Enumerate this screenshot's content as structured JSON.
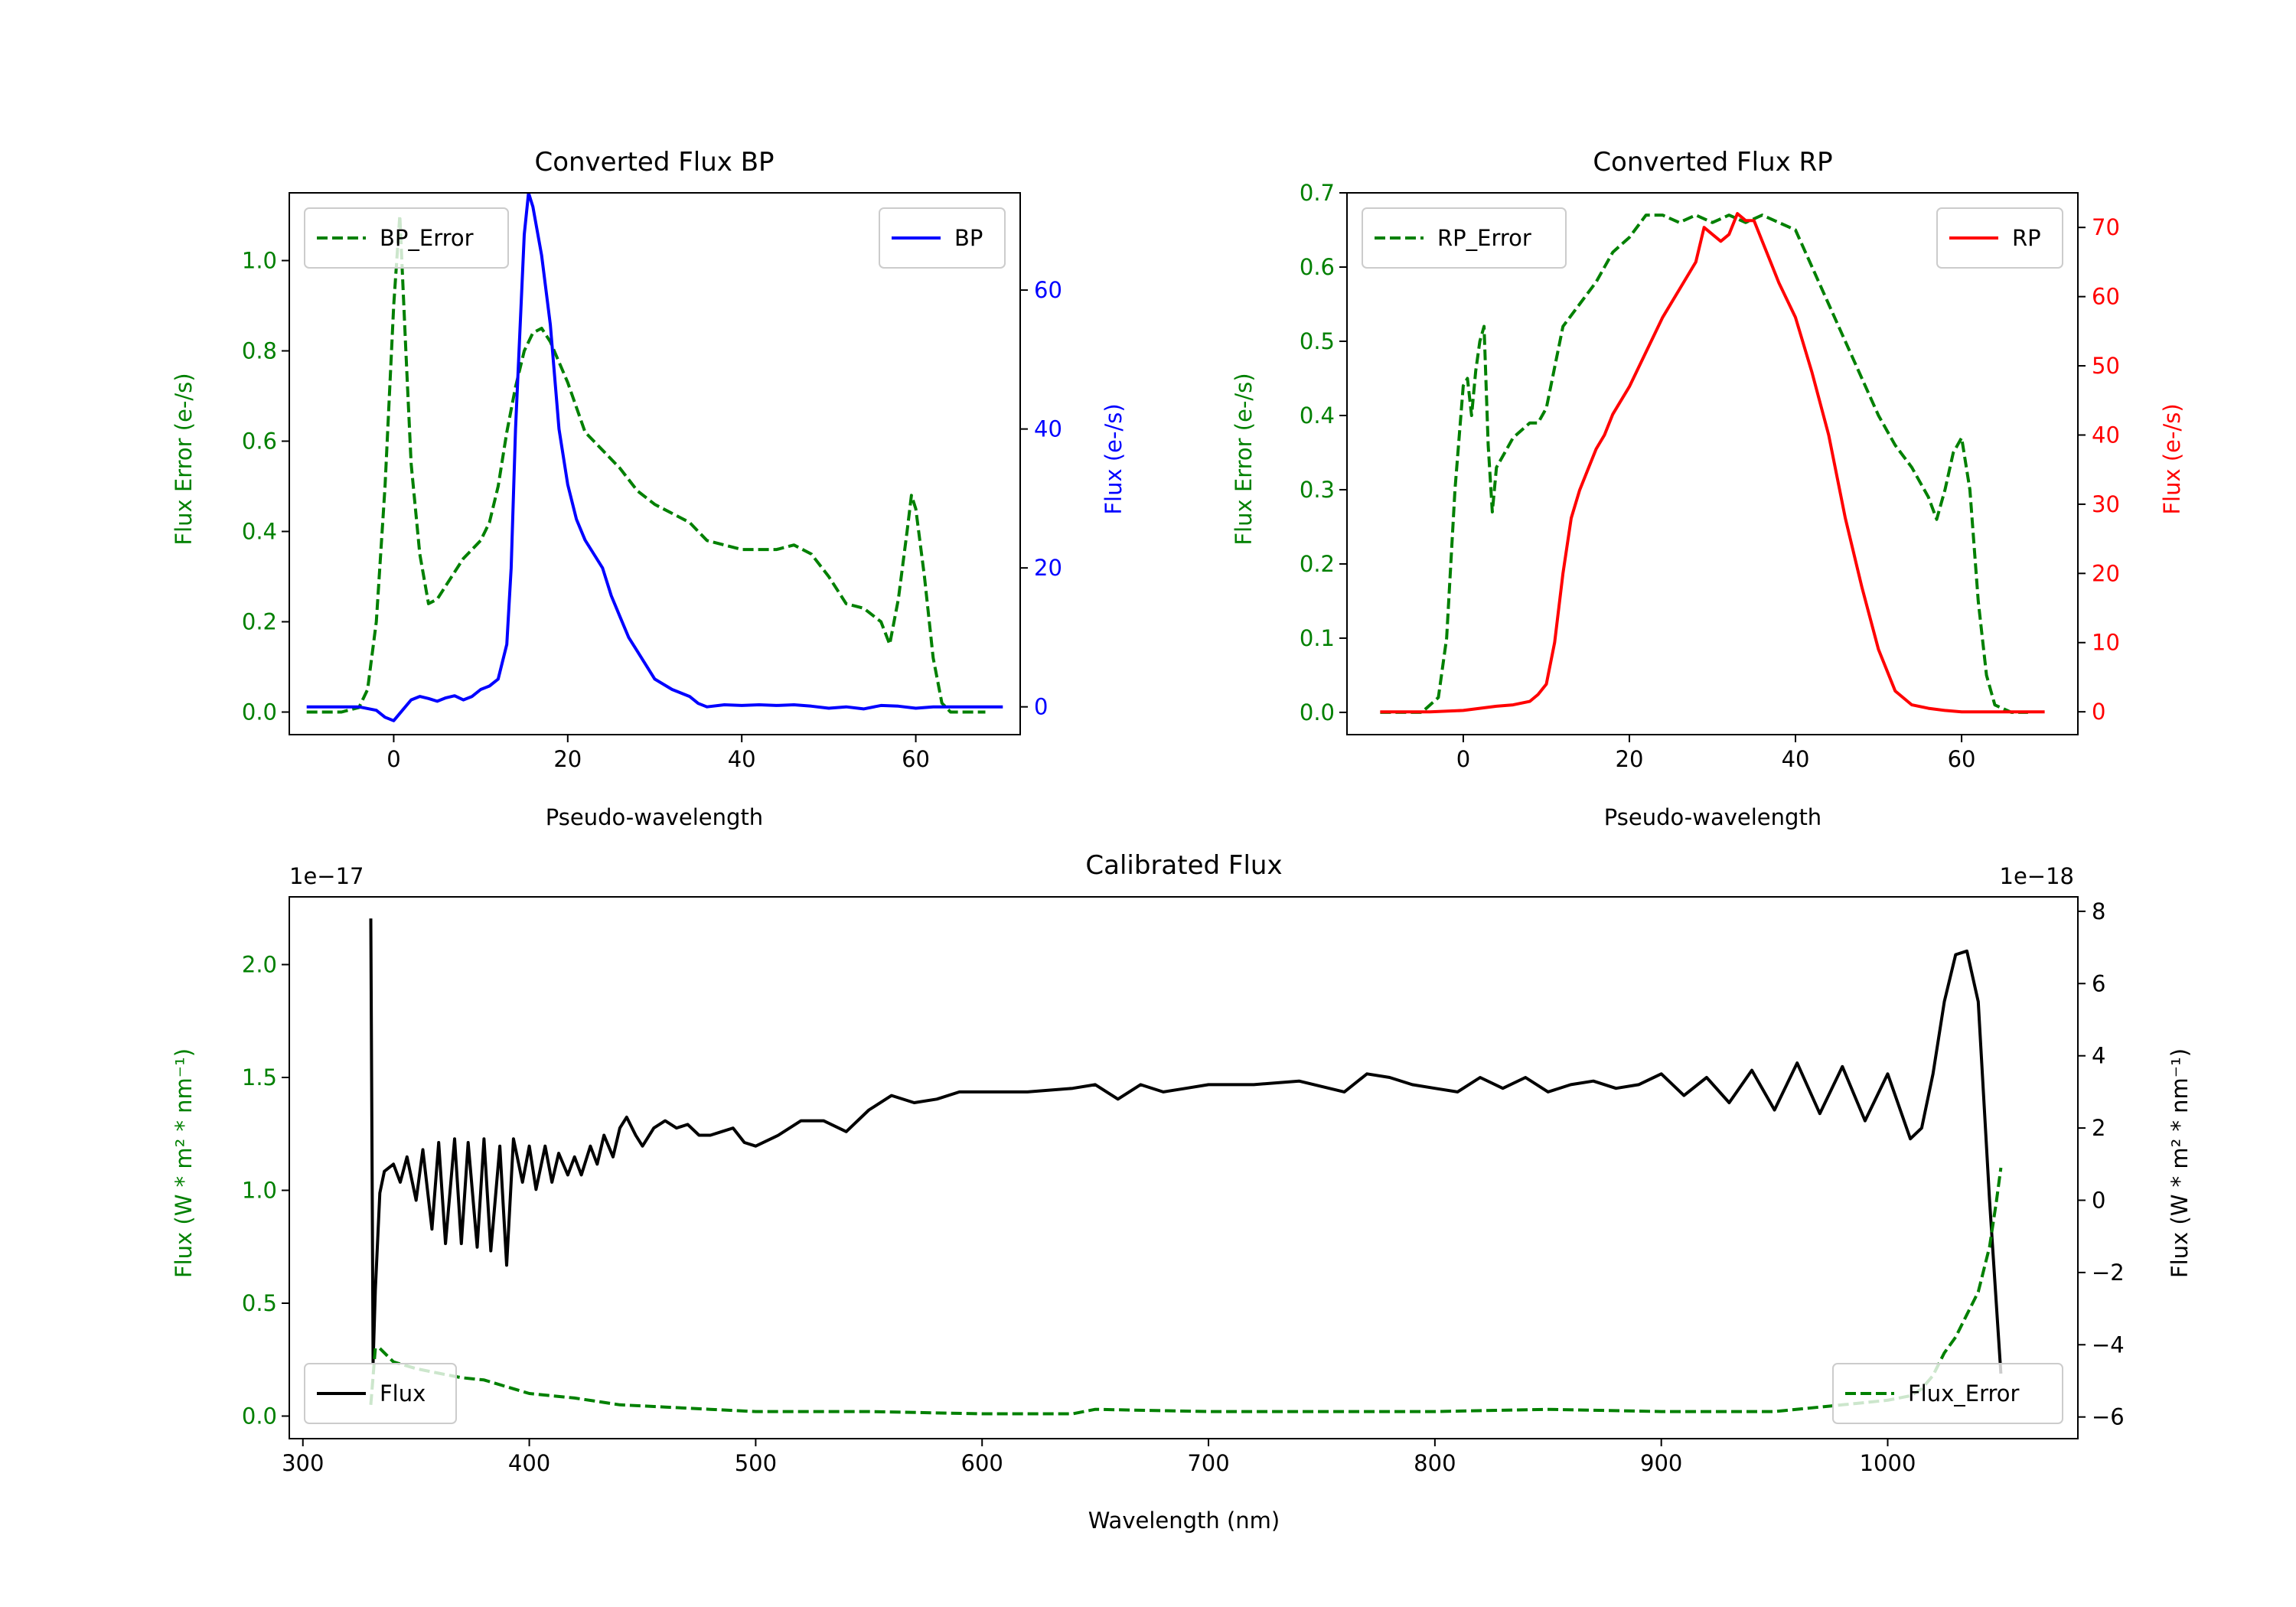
{
  "colors": {
    "green": "#008000",
    "blue": "#0000ff",
    "red": "#ff0000",
    "black": "#000000",
    "axis": "#000000"
  },
  "chart_data": [
    {
      "id": "bp",
      "type": "line",
      "title": "Converted Flux BP",
      "xlabel": "Pseudo-wavelength",
      "ylabel_left": "Flux Error (e-/s)",
      "ylabel_right": "Flux (e-/s)",
      "xlim": [
        -12,
        72
      ],
      "ylim_left": [
        -0.05,
        1.15
      ],
      "ylim_right": [
        -4,
        74
      ],
      "xticks": [
        0,
        20,
        40,
        60
      ],
      "xtick_labels": [
        "0",
        "20",
        "40",
        "60"
      ],
      "yticks_left": [
        0.0,
        0.2,
        0.4,
        0.6,
        0.8,
        1.0
      ],
      "ytick_labels_left": [
        "0.0",
        "0.2",
        "0.4",
        "0.6",
        "0.8",
        "1.0"
      ],
      "yticks_right": [
        0,
        20,
        40,
        60
      ],
      "ytick_labels_right": [
        "0",
        "20",
        "40",
        "60"
      ],
      "legend_left": {
        "label": "BP_Error",
        "placement": "upper left"
      },
      "legend_right": {
        "label": "BP",
        "placement": "upper right"
      },
      "series": [
        {
          "name": "BP_Error",
          "axis": "left",
          "color": "green",
          "style": "dashed",
          "x": [
            -10,
            -6,
            -4,
            -3,
            -2,
            -1,
            0,
            0.7,
            1.4,
            2,
            3,
            4,
            5,
            6,
            7,
            8,
            9,
            10,
            11,
            12,
            13,
            14,
            15,
            16,
            17,
            18,
            20,
            22,
            24,
            26,
            28,
            30,
            32,
            34,
            36,
            38,
            40,
            42,
            44,
            46,
            48,
            50,
            52,
            54,
            56,
            57,
            58,
            59,
            59.5,
            60,
            61,
            62,
            63,
            64,
            66,
            68
          ],
          "values": [
            0.0,
            0.0,
            0.01,
            0.05,
            0.2,
            0.5,
            0.9,
            1.1,
            0.8,
            0.55,
            0.35,
            0.24,
            0.25,
            0.28,
            0.31,
            0.34,
            0.36,
            0.38,
            0.42,
            0.5,
            0.62,
            0.72,
            0.8,
            0.84,
            0.85,
            0.82,
            0.73,
            0.62,
            0.58,
            0.54,
            0.49,
            0.46,
            0.44,
            0.42,
            0.38,
            0.37,
            0.36,
            0.36,
            0.36,
            0.37,
            0.35,
            0.3,
            0.24,
            0.23,
            0.2,
            0.15,
            0.25,
            0.4,
            0.48,
            0.45,
            0.3,
            0.12,
            0.02,
            0.0,
            0.0,
            0.0
          ]
        },
        {
          "name": "BP",
          "axis": "right",
          "color": "blue",
          "style": "solid",
          "x": [
            -10,
            -4,
            -2,
            -1,
            0,
            1,
            2,
            3,
            4,
            5,
            6,
            7,
            8,
            9,
            10,
            11,
            12,
            13,
            13.5,
            14,
            15,
            15.5,
            16,
            17,
            18,
            19,
            20,
            21,
            22,
            23,
            24,
            25,
            26,
            27,
            28,
            30,
            32,
            34,
            35,
            36,
            38,
            40,
            42,
            44,
            46,
            48,
            50,
            52,
            54,
            56,
            58,
            60,
            62,
            64,
            66,
            68,
            70
          ],
          "values": [
            0,
            0,
            -0.5,
            -1.5,
            -2,
            -0.5,
            1,
            1.5,
            1.2,
            0.8,
            1.3,
            1.6,
            1.0,
            1.5,
            2.5,
            3.0,
            4.0,
            9.0,
            20,
            40,
            68,
            74,
            72,
            65,
            55,
            40,
            32,
            27,
            24,
            22,
            20,
            16,
            13,
            10,
            8,
            4,
            2.5,
            1.5,
            0.5,
            0,
            0.3,
            0.2,
            0.3,
            0.2,
            0.3,
            0.1,
            -0.2,
            0,
            -0.3,
            0.2,
            0.1,
            -0.2,
            0,
            0,
            0,
            0,
            0
          ]
        }
      ]
    },
    {
      "id": "rp",
      "type": "line",
      "title": "Converted Flux RP",
      "xlabel": "Pseudo-wavelength",
      "ylabel_left": "Flux Error (e-/s)",
      "ylabel_right": "Flux (e-/s)",
      "xlim": [
        -14,
        74
      ],
      "ylim_left": [
        -0.03,
        0.7
      ],
      "ylim_right": [
        -3.3,
        75
      ],
      "xticks": [
        0,
        20,
        40,
        60
      ],
      "xtick_labels": [
        "0",
        "20",
        "40",
        "60"
      ],
      "yticks_left": [
        0.0,
        0.1,
        0.2,
        0.3,
        0.4,
        0.5,
        0.6,
        0.7
      ],
      "ytick_labels_left": [
        "0.0",
        "0.1",
        "0.2",
        "0.3",
        "0.4",
        "0.5",
        "0.6",
        "0.7"
      ],
      "yticks_right": [
        0,
        10,
        20,
        30,
        40,
        50,
        60,
        70
      ],
      "ytick_labels_right": [
        "0",
        "10",
        "20",
        "30",
        "40",
        "50",
        "60",
        "70"
      ],
      "legend_left": {
        "label": "RP_Error",
        "placement": "upper left"
      },
      "legend_right": {
        "label": "RP",
        "placement": "upper right"
      },
      "series": [
        {
          "name": "RP_Error",
          "axis": "left",
          "color": "green",
          "style": "dashed",
          "x": [
            -10,
            -5,
            -4,
            -3,
            -2,
            -1,
            0,
            0.5,
            1,
            1.5,
            2,
            2.5,
            3,
            3.5,
            4,
            5,
            6,
            7,
            8,
            9,
            10,
            12,
            14,
            16,
            18,
            20,
            22,
            24,
            26,
            28,
            30,
            32,
            34,
            36,
            38,
            40,
            42,
            44,
            46,
            48,
            50,
            52,
            54,
            55,
            56,
            57,
            58,
            59,
            60,
            61,
            62,
            63,
            64,
            66,
            68
          ],
          "values": [
            0.0,
            0.0,
            0.01,
            0.02,
            0.1,
            0.3,
            0.44,
            0.45,
            0.4,
            0.46,
            0.5,
            0.52,
            0.36,
            0.27,
            0.33,
            0.35,
            0.37,
            0.38,
            0.39,
            0.39,
            0.41,
            0.52,
            0.55,
            0.58,
            0.62,
            0.64,
            0.67,
            0.67,
            0.66,
            0.67,
            0.66,
            0.67,
            0.66,
            0.67,
            0.66,
            0.65,
            0.6,
            0.55,
            0.5,
            0.45,
            0.4,
            0.36,
            0.33,
            0.31,
            0.29,
            0.26,
            0.3,
            0.35,
            0.37,
            0.3,
            0.15,
            0.05,
            0.01,
            0.0,
            0.0
          ]
        },
        {
          "name": "RP",
          "axis": "right",
          "color": "red",
          "style": "solid",
          "x": [
            -10,
            -4,
            0,
            2,
            4,
            6,
            8,
            9,
            10,
            11,
            12,
            13,
            14,
            15,
            16,
            17,
            18,
            19,
            20,
            22,
            24,
            26,
            28,
            29,
            30,
            31,
            32,
            33,
            34,
            35,
            36,
            37,
            38,
            40,
            42,
            44,
            46,
            48,
            50,
            52,
            54,
            56,
            58,
            60,
            62,
            64,
            66,
            68,
            70
          ],
          "values": [
            0,
            0,
            0.2,
            0.5,
            0.8,
            1.0,
            1.5,
            2.5,
            4,
            10,
            20,
            28,
            32,
            35,
            38,
            40,
            43,
            45,
            47,
            52,
            57,
            61,
            65,
            70,
            69,
            68,
            69,
            72,
            71,
            71,
            68,
            65,
            62,
            57,
            49,
            40,
            28,
            18,
            9,
            3,
            1,
            0.5,
            0.2,
            0,
            0,
            0,
            0,
            0,
            0
          ]
        }
      ]
    },
    {
      "id": "calibrated",
      "type": "line",
      "title": "Calibrated Flux",
      "xlabel": "Wavelength (nm)",
      "ylabel_left": "Flux (W * m² * nm⁻¹)",
      "ylabel_right": "Flux (W * m² * nm⁻¹)",
      "offset_left": "1e−17",
      "offset_right": "1e−18",
      "xlim": [
        294,
        1084
      ],
      "ylim_left": [
        -0.1,
        2.3
      ],
      "ylim_right": [
        -6.6,
        8.4
      ],
      "xticks": [
        300,
        400,
        500,
        600,
        700,
        800,
        900,
        1000
      ],
      "xtick_labels": [
        "300",
        "400",
        "500",
        "600",
        "700",
        "800",
        "900",
        "1000"
      ],
      "yticks_left": [
        0.0,
        0.5,
        1.0,
        1.5,
        2.0
      ],
      "ytick_labels_left": [
        "0.0",
        "0.5",
        "1.0",
        "1.5",
        "2.0"
      ],
      "yticks_right": [
        -6,
        -4,
        -2,
        0,
        2,
        4,
        6,
        8
      ],
      "ytick_labels_right": [
        "−6",
        "−4",
        "−2",
        "0",
        "2",
        "4",
        "6",
        "8"
      ],
      "legend_left": {
        "label": "Flux",
        "placement": "lower left"
      },
      "legend_right": {
        "label": "Flux_Error",
        "placement": "lower right"
      },
      "series": [
        {
          "name": "Flux",
          "axis": "right",
          "color": "black",
          "style": "solid",
          "x": [
            330,
            331,
            332,
            334,
            336,
            340,
            343,
            346,
            350,
            353,
            357,
            360,
            363,
            367,
            370,
            373,
            377,
            380,
            383,
            387,
            390,
            393,
            397,
            400,
            403,
            407,
            410,
            413,
            417,
            420,
            423,
            427,
            430,
            433,
            437,
            440,
            443,
            447,
            450,
            455,
            460,
            465,
            470,
            475,
            480,
            485,
            490,
            495,
            500,
            510,
            520,
            530,
            540,
            550,
            560,
            570,
            580,
            590,
            600,
            620,
            640,
            650,
            660,
            670,
            680,
            690,
            700,
            720,
            740,
            760,
            770,
            780,
            790,
            800,
            810,
            820,
            830,
            840,
            850,
            860,
            870,
            880,
            890,
            900,
            910,
            920,
            930,
            940,
            950,
            960,
            970,
            980,
            990,
            1000,
            1010,
            1015,
            1020,
            1025,
            1030,
            1035,
            1040,
            1045,
            1050
          ],
          "values": [
            7.8,
            -4.5,
            -2.5,
            0.2,
            0.8,
            1.0,
            0.5,
            1.2,
            0.0,
            1.4,
            -0.8,
            1.6,
            -1.2,
            1.7,
            -1.2,
            1.6,
            -1.3,
            1.7,
            -1.4,
            1.5,
            -1.8,
            1.7,
            0.5,
            1.5,
            0.3,
            1.5,
            0.5,
            1.3,
            0.7,
            1.2,
            0.7,
            1.5,
            1.0,
            1.8,
            1.2,
            2.0,
            2.3,
            1.8,
            1.5,
            2.0,
            2.2,
            2.0,
            2.1,
            1.8,
            1.8,
            1.9,
            2.0,
            1.6,
            1.5,
            1.8,
            2.2,
            2.2,
            1.9,
            2.5,
            2.9,
            2.7,
            2.8,
            3.0,
            3.0,
            3.0,
            3.1,
            3.2,
            2.8,
            3.2,
            3.0,
            3.1,
            3.2,
            3.2,
            3.3,
            3.0,
            3.5,
            3.4,
            3.2,
            3.1,
            3.0,
            3.4,
            3.1,
            3.4,
            3.0,
            3.2,
            3.3,
            3.1,
            3.2,
            3.5,
            2.9,
            3.4,
            2.7,
            3.6,
            2.5,
            3.8,
            2.4,
            3.7,
            2.2,
            3.5,
            1.7,
            2.0,
            3.5,
            5.5,
            6.8,
            6.9,
            5.5,
            0.0,
            -4.8
          ]
        },
        {
          "name": "Flux_Error",
          "axis": "left",
          "color": "green",
          "style": "dashed",
          "x": [
            330,
            332,
            334,
            340,
            350,
            360,
            370,
            380,
            390,
            400,
            420,
            440,
            460,
            480,
            500,
            550,
            600,
            640,
            650,
            700,
            750,
            800,
            850,
            900,
            950,
            980,
            1000,
            1010,
            1015,
            1020,
            1025,
            1030,
            1035,
            1040,
            1045,
            1048,
            1050
          ],
          "values": [
            0.05,
            0.3,
            0.3,
            0.24,
            0.21,
            0.19,
            0.17,
            0.16,
            0.13,
            0.1,
            0.08,
            0.05,
            0.04,
            0.03,
            0.02,
            0.02,
            0.01,
            0.01,
            0.03,
            0.02,
            0.02,
            0.02,
            0.03,
            0.02,
            0.02,
            0.05,
            0.07,
            0.09,
            0.12,
            0.18,
            0.28,
            0.35,
            0.45,
            0.55,
            0.75,
            0.95,
            1.1
          ]
        }
      ]
    }
  ]
}
